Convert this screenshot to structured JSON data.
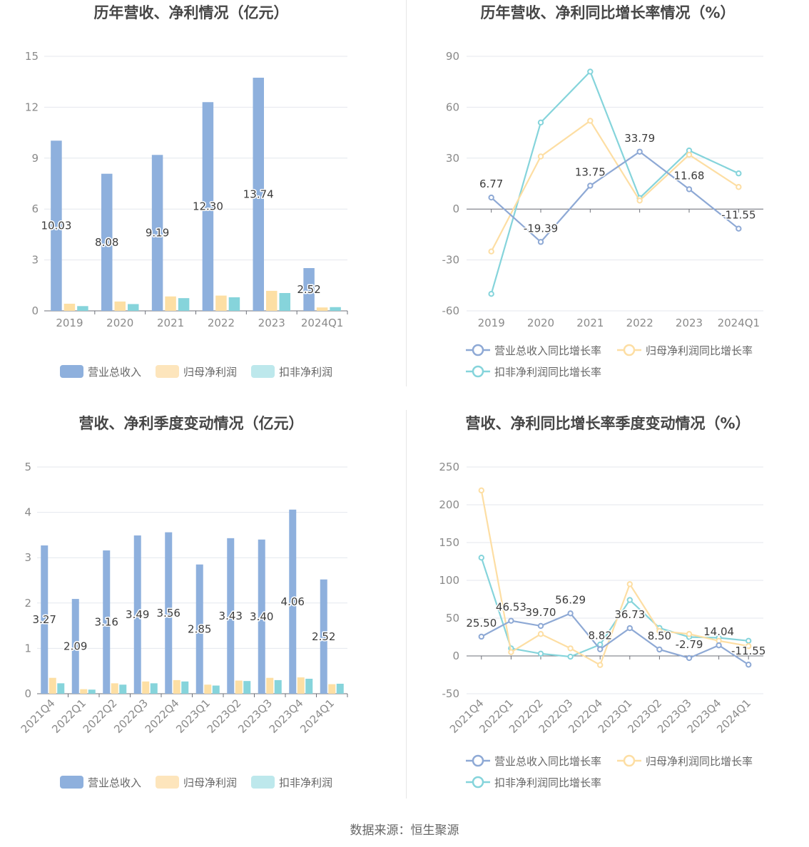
{
  "source_text": "数据来源：恒生聚源",
  "colors": {
    "revenue": "#8eb0dd",
    "net_profit": "#fddfa4",
    "deducted_profit": "#86d4db",
    "revenue_line": "#8ea9d5",
    "net_profit_line": "#fddea3",
    "deducted_line": "#85d4db",
    "grid": "#e4e7ee",
    "legend_bar_profit": "#fde5bc",
    "legend_bar_deducted": "#bde8ec"
  },
  "chart_data": [
    {
      "id": "annual_amount",
      "type": "bar",
      "title": "历年营收、净利情况（亿元）",
      "categories": [
        "2019",
        "2020",
        "2021",
        "2022",
        "2023",
        "2024Q1"
      ],
      "ylim": [
        0,
        15
      ],
      "yticks": [
        0,
        3,
        6,
        9,
        12,
        15
      ],
      "grid": true,
      "legend_position": "bottom",
      "series": [
        {
          "name": "营业总收入",
          "values": [
            10.03,
            8.08,
            9.19,
            12.3,
            13.74,
            2.52
          ],
          "labels": [
            "10.03",
            "8.08",
            "9.19",
            "12.30",
            "13.74",
            "2.52"
          ]
        },
        {
          "name": "归母净利润",
          "values": [
            0.42,
            0.55,
            0.85,
            0.9,
            1.18,
            0.2
          ]
        },
        {
          "name": "扣非净利润",
          "values": [
            0.28,
            0.4,
            0.75,
            0.8,
            1.05,
            0.22
          ]
        }
      ]
    },
    {
      "id": "annual_growth",
      "type": "line",
      "title": "历年营收、净利同比增长率情况（%）",
      "categories": [
        "2019",
        "2020",
        "2021",
        "2022",
        "2023",
        "2024Q1"
      ],
      "ylim": [
        -60,
        90
      ],
      "yticks": [
        -60,
        -30,
        0,
        30,
        60,
        90
      ],
      "grid": true,
      "legend_position": "bottom",
      "series": [
        {
          "name": "营业总收入同比增长率",
          "values": [
            6.77,
            -19.39,
            13.75,
            33.79,
            11.68,
            -11.55
          ],
          "labels": [
            "6.77",
            "-19.39",
            "13.75",
            "33.79",
            "11.68",
            "-11.55"
          ]
        },
        {
          "name": "归母净利润同比增长率",
          "values": [
            -25,
            31,
            52,
            5,
            32,
            13
          ]
        },
        {
          "name": "扣非净利润同比增长率",
          "values": [
            -50,
            51,
            81,
            6.5,
            34.5,
            21
          ]
        }
      ]
    },
    {
      "id": "quarterly_amount",
      "type": "bar",
      "title": "营收、净利季度变动情况（亿元）",
      "categories": [
        "2021Q4",
        "2022Q1",
        "2022Q2",
        "2022Q3",
        "2022Q4",
        "2023Q1",
        "2023Q2",
        "2023Q3",
        "2023Q4",
        "2024Q1"
      ],
      "ylim": [
        0,
        5
      ],
      "yticks": [
        0,
        1,
        2,
        3,
        4,
        5
      ],
      "grid": true,
      "legend_position": "bottom",
      "series": [
        {
          "name": "营业总收入",
          "values": [
            3.27,
            2.09,
            3.16,
            3.49,
            3.56,
            2.85,
            3.43,
            3.4,
            4.06,
            2.52
          ],
          "labels": [
            "3.27",
            "2.09",
            "3.16",
            "3.49",
            "3.56",
            "2.85",
            "3.43",
            "3.40",
            "4.06",
            "2.52"
          ]
        },
        {
          "name": "归母净利润",
          "values": [
            0.35,
            0.1,
            0.23,
            0.27,
            0.3,
            0.2,
            0.29,
            0.35,
            0.36,
            0.21
          ]
        },
        {
          "name": "扣非净利润",
          "values": [
            0.23,
            0.09,
            0.2,
            0.23,
            0.27,
            0.18,
            0.28,
            0.3,
            0.33,
            0.22
          ]
        }
      ]
    },
    {
      "id": "quarterly_growth",
      "type": "line",
      "title": "营收、净利同比增长率季度变动情况（%）",
      "categories": [
        "2021Q4",
        "2022Q1",
        "2022Q2",
        "2022Q3",
        "2022Q4",
        "2023Q1",
        "2023Q2",
        "2023Q3",
        "2023Q4",
        "2024Q1"
      ],
      "ylim": [
        -50,
        250
      ],
      "yticks": [
        -50,
        0,
        50,
        100,
        150,
        200,
        250
      ],
      "grid": true,
      "legend_position": "bottom",
      "series": [
        {
          "name": "营业总收入同比增长率",
          "values": [
            25.5,
            46.53,
            39.7,
            56.29,
            8.82,
            36.73,
            8.5,
            -2.79,
            14.04,
            -11.55
          ],
          "labels": [
            "25.50",
            "46.53",
            "39.70",
            "56.29",
            "8.82",
            "36.73",
            "8.50",
            "-2.79",
            "14.04",
            "-11.55"
          ]
        },
        {
          "name": "归母净利润同比增长率",
          "values": [
            219,
            5,
            29,
            10,
            -12,
            95,
            33,
            29,
            20,
            13
          ]
        },
        {
          "name": "扣非净利润同比增长率",
          "values": [
            130,
            10,
            3,
            -1,
            15,
            74,
            37,
            25,
            24,
            20
          ]
        }
      ]
    }
  ]
}
